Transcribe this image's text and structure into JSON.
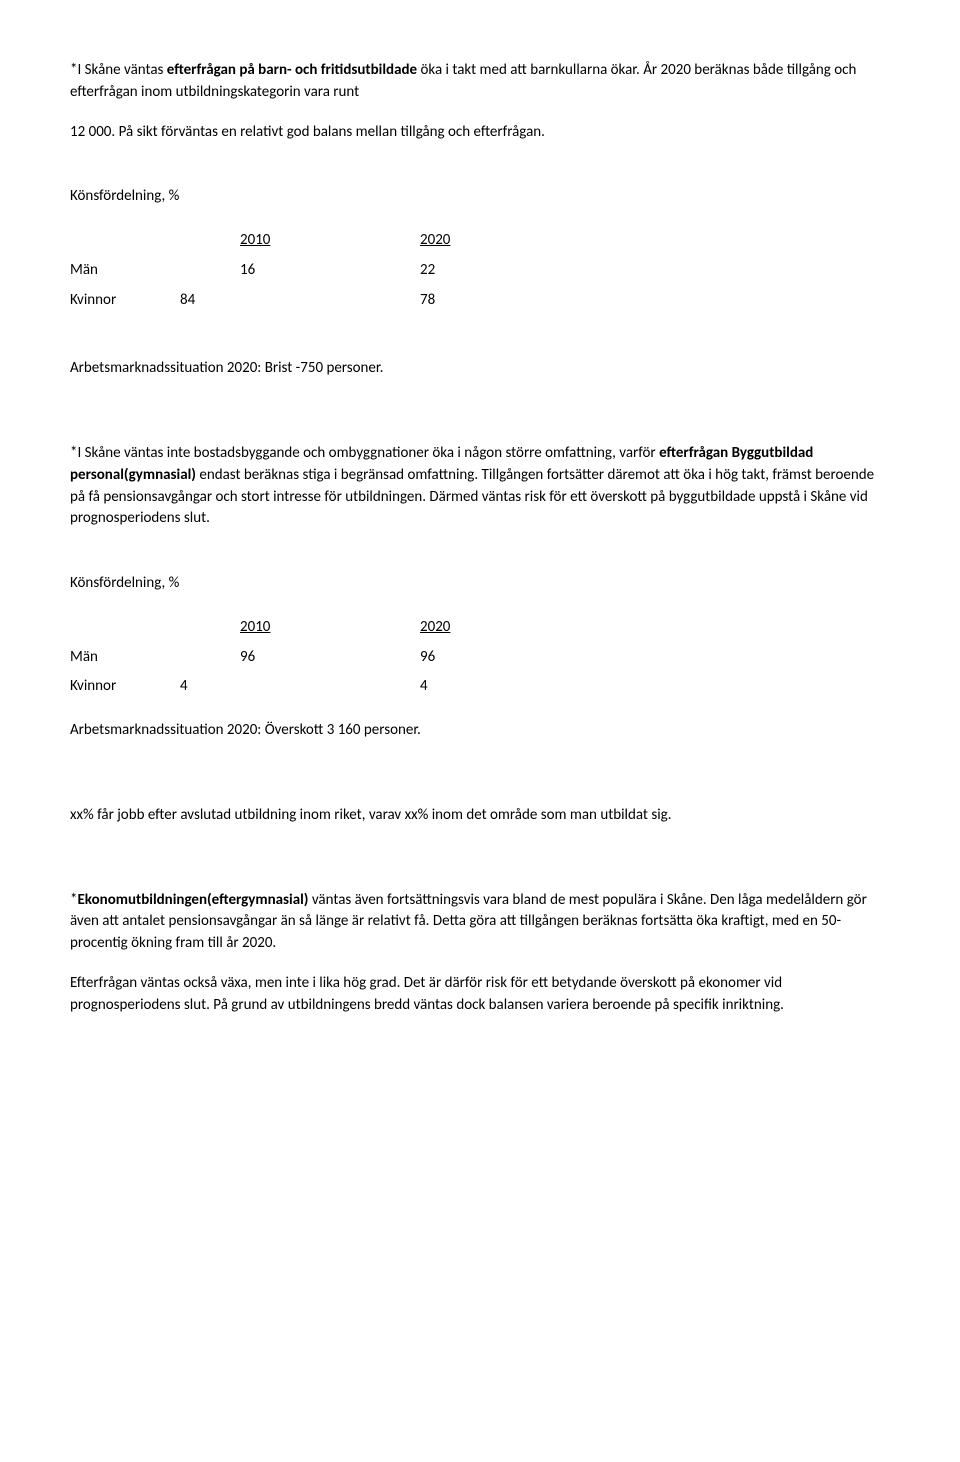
{
  "para1": {
    "pre": "*I Skåne väntas ",
    "bold": "efterfrågan på barn- och fritidsutbildade",
    "post": " öka i takt med att barnkullarna ökar. År 2020 beräknas både tillgång och efterfrågan inom utbildningskategorin vara runt"
  },
  "para1b": "12 000. På sikt förväntas en relativt god balans mellan tillgång och efterfrågan.",
  "dist_label": "Könsfördelning, %",
  "year1": "2010",
  "year2": "2020",
  "men_label": "Män",
  "women_label": "Kvinnor",
  "t1": {
    "men": [
      "16",
      "22"
    ],
    "women": [
      "84",
      "78"
    ]
  },
  "situation1": "Arbetsmarknadssituation 2020: Brist -750 personer.",
  "para2": {
    "pre": "*I Skåne väntas inte bostadsbyggande och ombyggnationer öka i någon större omfattning, varför ",
    "bold": "efterfrågan Byggutbildad personal(gymnasial)",
    "post": " endast beräknas stiga i begränsad omfattning. Tillgången fortsätter däremot att öka i hög takt, främst beroende på få pensionsavgångar och stort intresse för utbildningen. Därmed väntas risk för ett överskott på byggutbildade uppstå i Skåne vid prognosperiodens slut."
  },
  "t2": {
    "men": [
      "96",
      "96"
    ],
    "women": [
      "4",
      "4"
    ]
  },
  "situation2": "Arbetsmarknadssituation 2020: Överskott 3 160 personer.",
  "para3": "xx% får jobb efter avslutad utbildning inom riket, varav xx% inom det område som man utbildat sig.",
  "para4": {
    "pre": "*",
    "bold": "Ekonomutbildningen(eftergymnasial)",
    "post": " väntas även fortsättningsvis vara bland de mest populära i Skåne. Den låga medelåldern gör även att antalet pensionsavgångar än så länge är relativt få. Detta göra att tillgången beräknas fortsätta öka kraftigt, med en 50-procentig ökning fram till år 2020."
  },
  "para5": "Efterfrågan väntas också växa, men inte i lika hög grad. Det är därför risk för ett betydande överskott på ekonomer vid prognosperiodens slut. På grund av utbildningens bredd väntas dock balansen variera beroende på specifik inriktning."
}
